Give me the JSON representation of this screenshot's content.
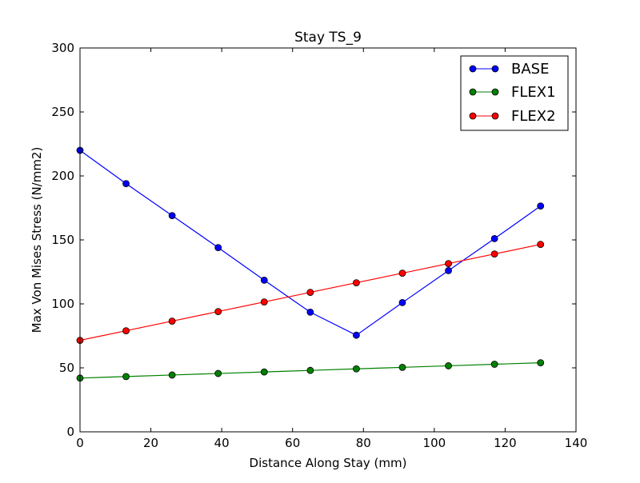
{
  "chart_data": {
    "type": "line",
    "title": "Stay TS_9",
    "xlabel": "Distance Along Stay (mm)",
    "ylabel": "Max Von Mises Stress (N/mm2)",
    "xlim": [
      0,
      140
    ],
    "ylim": [
      0,
      300
    ],
    "xticks": [
      0,
      20,
      40,
      60,
      80,
      100,
      120,
      140
    ],
    "yticks": [
      0,
      50,
      100,
      150,
      200,
      250,
      300
    ],
    "xtick_labels": [
      "0",
      "20",
      "40",
      "60",
      "80",
      "100",
      "120",
      "140"
    ],
    "ytick_labels": [
      "0",
      "50",
      "100",
      "150",
      "200",
      "250",
      "300"
    ],
    "grid": false,
    "legend_position": "top-right",
    "x": [
      0,
      13,
      26,
      39,
      52,
      65,
      78,
      91,
      104,
      117,
      130
    ],
    "series": [
      {
        "name": "BASE",
        "color": "#0000ff",
        "values": [
          220,
          194,
          169,
          144,
          118.5,
          93.5,
          75.5,
          101,
          126,
          151,
          176.5
        ]
      },
      {
        "name": "FLEX1",
        "color": "#008000",
        "values": [
          42,
          43.2,
          44.4,
          45.6,
          46.8,
          48,
          49.2,
          50.4,
          51.6,
          52.8,
          54
        ]
      },
      {
        "name": "FLEX2",
        "color": "#ff0000",
        "values": [
          71.5,
          79,
          86.5,
          94,
          101.5,
          109,
          116.5,
          124,
          131.5,
          139,
          146.5
        ]
      }
    ]
  }
}
